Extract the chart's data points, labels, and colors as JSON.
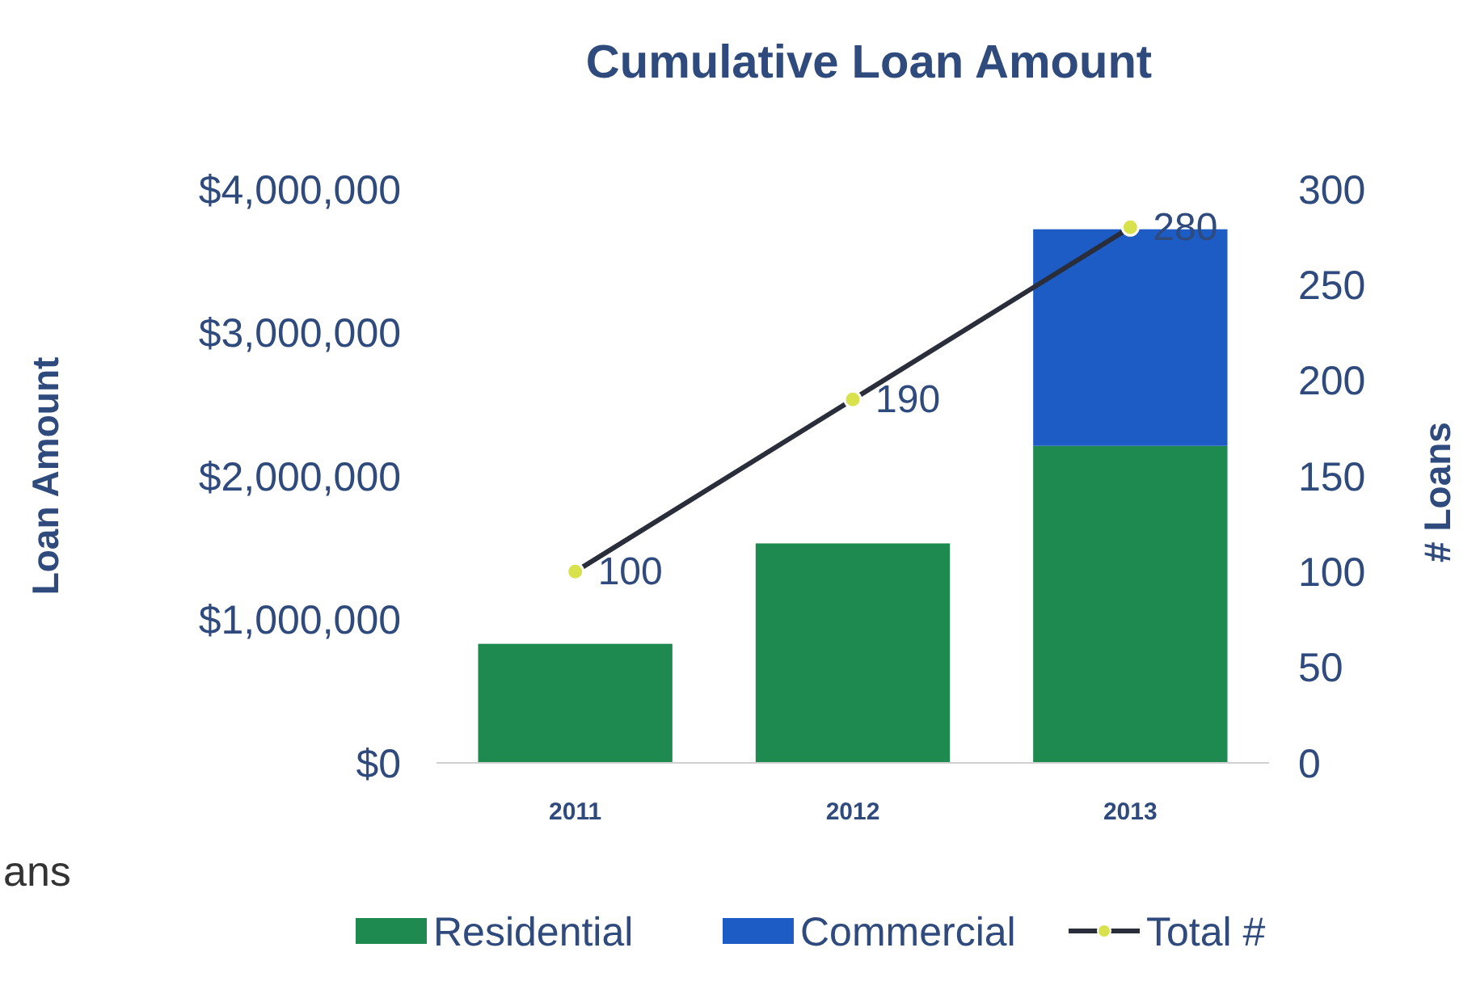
{
  "chart_data": {
    "type": "bar",
    "title": "Cumulative Loan Amount",
    "ylabel": "Loan Amount",
    "y2label": "# Loans",
    "categories": [
      "2011",
      "2012",
      "2013"
    ],
    "stacked": true,
    "series": [
      {
        "name": "Residential",
        "color": "#1f8a4f",
        "values": [
          830000,
          1530000,
          2210000
        ]
      },
      {
        "name": "Commercial",
        "color": "#1d5cc4",
        "values": [
          0,
          0,
          1510000
        ]
      },
      {
        "name": "Total #",
        "type": "line",
        "axis": "y2",
        "color": "#2a2d3a",
        "marker": "circle",
        "values": [
          100,
          190,
          280
        ],
        "value_labels": [
          "100",
          "190",
          "280"
        ]
      }
    ],
    "ylim": [
      0,
      4000000
    ],
    "yticks": [
      {
        "value": 0,
        "label": "$0"
      },
      {
        "value": 1000000,
        "label": "$1,000,000"
      },
      {
        "value": 2000000,
        "label": "$2,000,000"
      },
      {
        "value": 3000000,
        "label": "$3,000,000"
      },
      {
        "value": 4000000,
        "label": "$4,000,000"
      }
    ],
    "y2lim": [
      0,
      300
    ],
    "y2ticks": [
      0,
      50,
      100,
      150,
      200,
      250,
      300
    ],
    "legend": "bottom",
    "grid": false,
    "annotations": [
      "ans"
    ]
  }
}
